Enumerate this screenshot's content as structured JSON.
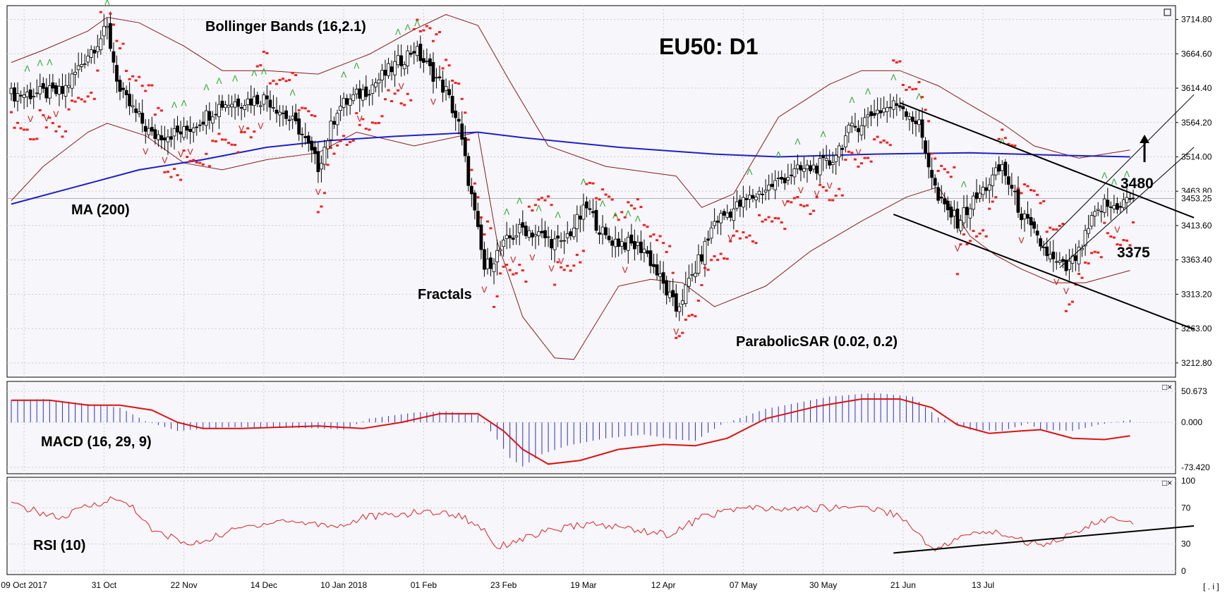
{
  "title": "EU50: D1",
  "colors": {
    "background": "#ffffff",
    "panel_bg": "#f7f7fb",
    "grid": "#c8c8d2",
    "bull_candle": "#ffffff",
    "bear_candle": "#000000",
    "bollinger": "#8b1a1a",
    "ma": "#1f1fcc",
    "sar": "#ff1a1a",
    "fractal_up": "#22aa22",
    "fractal_down": "#cc1111",
    "macd_hist": "#2a2ae6",
    "macd_signal": "#e01010",
    "rsi": "#e02020",
    "trendline": "#000000"
  },
  "labels": {
    "bollinger": "Bollinger Bands (16,2.1)",
    "ma": "MA (200)",
    "fractals": "Fractals",
    "sar": "ParabolicSAR (0.02, 0.2)",
    "macd": "MACD (16, 29, 9)",
    "rsi": "RSI (10)",
    "target_up": "3480",
    "target_down": "3375",
    "corner": "[ . i ]"
  },
  "chart_data": [
    {
      "type": "candlestick",
      "panel": "price",
      "title": "EU50: D1",
      "y_ticks": [
        "3714.80",
        "3664.60",
        "3614.40",
        "3564.20",
        "3514.00",
        "3463.80",
        "3413.60",
        "3363.40",
        "3313.20",
        "3263.00",
        "3212.80"
      ],
      "ylim": [
        3192,
        3735
      ],
      "x_tick_labels": [
        "09 Oct 2017",
        "31 Oct",
        "22 Nov",
        "14 Dec",
        "10 Jan 2018",
        "01 Feb",
        "23 Feb",
        "19 Mar",
        "12 Apr",
        "07 May",
        "30 May",
        "21 Jun",
        "13 Jul"
      ],
      "last_price": "3453.25",
      "close_path": [
        [
          0,
          3605
        ],
        [
          16,
          3608
        ],
        [
          24,
          3665
        ],
        [
          30,
          3700
        ],
        [
          34,
          3608
        ],
        [
          44,
          3545
        ],
        [
          54,
          3550
        ],
        [
          66,
          3592
        ],
        [
          80,
          3600
        ],
        [
          90,
          3555
        ],
        [
          96,
          3500
        ],
        [
          102,
          3585
        ],
        [
          112,
          3615
        ],
        [
          126,
          3672
        ],
        [
          136,
          3610
        ],
        [
          140,
          3560
        ],
        [
          148,
          3350
        ],
        [
          156,
          3395
        ],
        [
          160,
          3410
        ],
        [
          172,
          3385
        ],
        [
          180,
          3440
        ],
        [
          186,
          3395
        ],
        [
          198,
          3380
        ],
        [
          208,
          3290
        ],
        [
          216,
          3370
        ],
        [
          220,
          3420
        ],
        [
          230,
          3450
        ],
        [
          244,
          3490
        ],
        [
          256,
          3505
        ],
        [
          262,
          3550
        ],
        [
          270,
          3580
        ],
        [
          278,
          3592
        ],
        [
          284,
          3560
        ],
        [
          290,
          3450
        ],
        [
          296,
          3420
        ],
        [
          304,
          3465
        ],
        [
          310,
          3500
        ],
        [
          316,
          3430
        ],
        [
          320,
          3400
        ],
        [
          326,
          3360
        ],
        [
          330,
          3350
        ],
        [
          334,
          3372
        ],
        [
          338,
          3420
        ],
        [
          342,
          3445
        ],
        [
          344,
          3440
        ],
        [
          348,
          3448
        ],
        [
          350,
          3453.25
        ]
      ],
      "series": [
        {
          "name": "Bollinger Bands (16,2.1)",
          "kind": "envelope",
          "upper": [
            [
              0,
              3652
            ],
            [
              10,
              3670
            ],
            [
              24,
              3698
            ],
            [
              30,
              3718
            ],
            [
              40,
              3710
            ],
            [
              54,
              3676
            ],
            [
              66,
              3640
            ],
            [
              80,
              3640
            ],
            [
              96,
              3635
            ],
            [
              112,
              3664
            ],
            [
              126,
              3700
            ],
            [
              136,
              3722
            ],
            [
              146,
              3706
            ],
            [
              156,
              3624
            ],
            [
              168,
              3530
            ],
            [
              186,
              3500
            ],
            [
              208,
              3486
            ],
            [
              216,
              3440
            ],
            [
              226,
              3460
            ],
            [
              240,
              3572
            ],
            [
              256,
              3620
            ],
            [
              266,
              3640
            ],
            [
              278,
              3640
            ],
            [
              290,
              3618
            ],
            [
              300,
              3590
            ],
            [
              310,
              3563
            ],
            [
              320,
              3530
            ],
            [
              334,
              3512
            ],
            [
              350,
              3524
            ]
          ],
          "lower": [
            [
              0,
              3450
            ],
            [
              10,
              3500
            ],
            [
              24,
              3550
            ],
            [
              30,
              3563
            ],
            [
              42,
              3545
            ],
            [
              54,
              3505
            ],
            [
              66,
              3495
            ],
            [
              80,
              3510
            ],
            [
              96,
              3520
            ],
            [
              108,
              3550
            ],
            [
              126,
              3530
            ],
            [
              146,
              3550
            ],
            [
              152,
              3390
            ],
            [
              160,
              3280
            ],
            [
              170,
              3220
            ],
            [
              176,
              3218
            ],
            [
              190,
              3325
            ],
            [
              200,
              3335
            ],
            [
              210,
              3330
            ],
            [
              220,
              3295
            ],
            [
              236,
              3325
            ],
            [
              250,
              3376
            ],
            [
              266,
              3420
            ],
            [
              280,
              3455
            ],
            [
              290,
              3470
            ],
            [
              300,
              3398
            ],
            [
              308,
              3370
            ],
            [
              316,
              3350
            ],
            [
              326,
              3330
            ],
            [
              336,
              3330
            ],
            [
              350,
              3348
            ]
          ]
        },
        {
          "name": "MA (200)",
          "kind": "line",
          "points": [
            [
              0,
              3445
            ],
            [
              20,
              3470
            ],
            [
              40,
              3495
            ],
            [
              60,
              3510
            ],
            [
              80,
              3528
            ],
            [
              100,
              3538
            ],
            [
              120,
              3544
            ],
            [
              146,
              3550
            ],
            [
              160,
              3542
            ],
            [
              190,
              3528
            ],
            [
              220,
              3518
            ],
            [
              240,
              3514
            ],
            [
              270,
              3518
            ],
            [
              300,
              3520
            ],
            [
              330,
              3516
            ],
            [
              350,
              3514
            ]
          ]
        },
        {
          "name": "ParabolicSAR (0.02, 0.2)",
          "kind": "dots"
        },
        {
          "name": "Fractals",
          "kind": "markers"
        }
      ],
      "trendlines": [
        {
          "from": [
            278,
            3593
          ],
          "to": [
            370,
            3425
          ]
        },
        {
          "from": [
            276,
            3430
          ],
          "to": [
            370,
            3262
          ]
        },
        {
          "from": [
            328,
            3352
          ],
          "to": [
            370,
            3528
          ]
        },
        {
          "from": [
            322,
            3380
          ],
          "to": [
            370,
            3605
          ]
        }
      ],
      "annotations": [
        {
          "text": "3480",
          "x": 350,
          "y": 3480,
          "arrow": "up"
        },
        {
          "text": "3375",
          "x": 350,
          "y": 3375
        }
      ]
    },
    {
      "type": "histogram",
      "panel": "macd",
      "title": "MACD (16, 29, 9)",
      "y_ticks": [
        "50.673",
        "0.000",
        "-73.420"
      ],
      "ylim": [
        -73.42,
        50.673
      ],
      "histogram_path": [
        [
          0,
          36
        ],
        [
          10,
          38
        ],
        [
          24,
          30
        ],
        [
          34,
          24
        ],
        [
          42,
          2
        ],
        [
          52,
          -14
        ],
        [
          66,
          -8
        ],
        [
          80,
          -8
        ],
        [
          96,
          -10
        ],
        [
          104,
          -12
        ],
        [
          112,
          6
        ],
        [
          126,
          16
        ],
        [
          136,
          18
        ],
        [
          146,
          12
        ],
        [
          152,
          -28
        ],
        [
          156,
          -58
        ],
        [
          160,
          -72
        ],
        [
          166,
          -52
        ],
        [
          174,
          -38
        ],
        [
          186,
          -26
        ],
        [
          198,
          -20
        ],
        [
          208,
          -28
        ],
        [
          214,
          -30
        ],
        [
          222,
          -4
        ],
        [
          236,
          22
        ],
        [
          256,
          42
        ],
        [
          270,
          48
        ],
        [
          282,
          42
        ],
        [
          290,
          8
        ],
        [
          300,
          -12
        ],
        [
          310,
          -14
        ],
        [
          318,
          -2
        ],
        [
          322,
          -12
        ],
        [
          332,
          -14
        ],
        [
          340,
          -4
        ],
        [
          350,
          4
        ]
      ],
      "signal_path": [
        [
          0,
          36
        ],
        [
          12,
          36
        ],
        [
          24,
          28
        ],
        [
          34,
          28
        ],
        [
          44,
          20
        ],
        [
          52,
          0
        ],
        [
          60,
          -10
        ],
        [
          72,
          -10
        ],
        [
          96,
          -6
        ],
        [
          110,
          -10
        ],
        [
          122,
          0
        ],
        [
          134,
          14
        ],
        [
          146,
          14
        ],
        [
          154,
          -14
        ],
        [
          160,
          -44
        ],
        [
          168,
          -68
        ],
        [
          178,
          -62
        ],
        [
          190,
          -44
        ],
        [
          204,
          -36
        ],
        [
          214,
          -38
        ],
        [
          224,
          -26
        ],
        [
          236,
          6
        ],
        [
          252,
          26
        ],
        [
          266,
          38
        ],
        [
          278,
          38
        ],
        [
          288,
          24
        ],
        [
          296,
          -4
        ],
        [
          306,
          -18
        ],
        [
          316,
          -14
        ],
        [
          322,
          -12
        ],
        [
          332,
          -26
        ],
        [
          342,
          -28
        ],
        [
          350,
          -22
        ]
      ]
    },
    {
      "type": "line",
      "panel": "rsi",
      "title": "RSI (10)",
      "y_ticks": [
        "100",
        "70",
        "30",
        "0"
      ],
      "ylim": [
        0,
        100
      ],
      "values_path": [
        [
          0,
          74
        ],
        [
          8,
          66
        ],
        [
          16,
          58
        ],
        [
          22,
          70
        ],
        [
          32,
          80
        ],
        [
          38,
          72
        ],
        [
          44,
          44
        ],
        [
          50,
          38
        ],
        [
          56,
          28
        ],
        [
          62,
          36
        ],
        [
          72,
          48
        ],
        [
          84,
          56
        ],
        [
          96,
          52
        ],
        [
          104,
          50
        ],
        [
          110,
          60
        ],
        [
          120,
          62
        ],
        [
          130,
          66
        ],
        [
          140,
          62
        ],
        [
          148,
          46
        ],
        [
          152,
          26
        ],
        [
          158,
          34
        ],
        [
          168,
          44
        ],
        [
          180,
          52
        ],
        [
          192,
          48
        ],
        [
          206,
          40
        ],
        [
          216,
          60
        ],
        [
          228,
          70
        ],
        [
          240,
          68
        ],
        [
          256,
          70
        ],
        [
          266,
          72
        ],
        [
          278,
          62
        ],
        [
          286,
          32
        ],
        [
          290,
          24
        ],
        [
          296,
          36
        ],
        [
          304,
          44
        ],
        [
          312,
          40
        ],
        [
          318,
          32
        ],
        [
          322,
          30
        ],
        [
          332,
          40
        ],
        [
          338,
          52
        ],
        [
          344,
          58
        ],
        [
          350,
          52
        ]
      ],
      "trendline": {
        "from": [
          276,
          20
        ],
        "to": [
          370,
          50
        ]
      }
    }
  ]
}
